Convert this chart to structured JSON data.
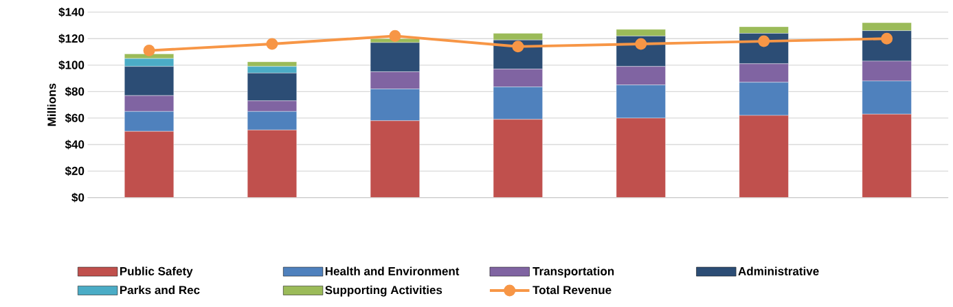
{
  "chart_data": {
    "type": "bar",
    "stacked": true,
    "ylabel": "Millions",
    "categories": [
      null,
      null,
      null,
      null,
      null,
      null,
      null
    ],
    "ylim": [
      0,
      140
    ],
    "yticks": [
      {
        "value": 0,
        "label": "$0"
      },
      {
        "value": 20,
        "label": "$20"
      },
      {
        "value": 40,
        "label": "$40"
      },
      {
        "value": 60,
        "label": "$60"
      },
      {
        "value": 80,
        "label": "$80"
      },
      {
        "value": 100,
        "label": "$100"
      },
      {
        "value": 120,
        "label": "$120"
      },
      {
        "value": 140,
        "label": "$140"
      }
    ],
    "grid": "y",
    "legend": "bottom",
    "marker": "circle",
    "series": [
      {
        "name": "Public Safety",
        "color": "#c0504d",
        "values": [
          50,
          51,
          58,
          59,
          60,
          62,
          63
        ]
      },
      {
        "name": "Health and Environment",
        "color": "#4f81bd",
        "values": [
          15,
          14,
          24,
          24.5,
          25,
          25,
          25
        ]
      },
      {
        "name": "Transportation",
        "color": "#8064a2",
        "values": [
          12,
          8,
          13,
          13.5,
          14,
          14,
          15
        ]
      },
      {
        "name": "Administrative",
        "color": "#2c4d75",
        "values": [
          22,
          21,
          22,
          22,
          23,
          23,
          23
        ]
      },
      {
        "name": "Parks and Rec",
        "color": "#4bacc6",
        "values": [
          6,
          5,
          0,
          0,
          0,
          0,
          0
        ]
      },
      {
        "name": "Supporting Activities",
        "color": "#9bbb59",
        "values": [
          3.5,
          3.5,
          3,
          5,
          5,
          5,
          6
        ]
      },
      {
        "name": "Total Revenue",
        "type": "line",
        "color": "#f79646",
        "values": [
          111,
          116,
          122,
          114,
          116,
          118,
          120
        ]
      }
    ]
  }
}
